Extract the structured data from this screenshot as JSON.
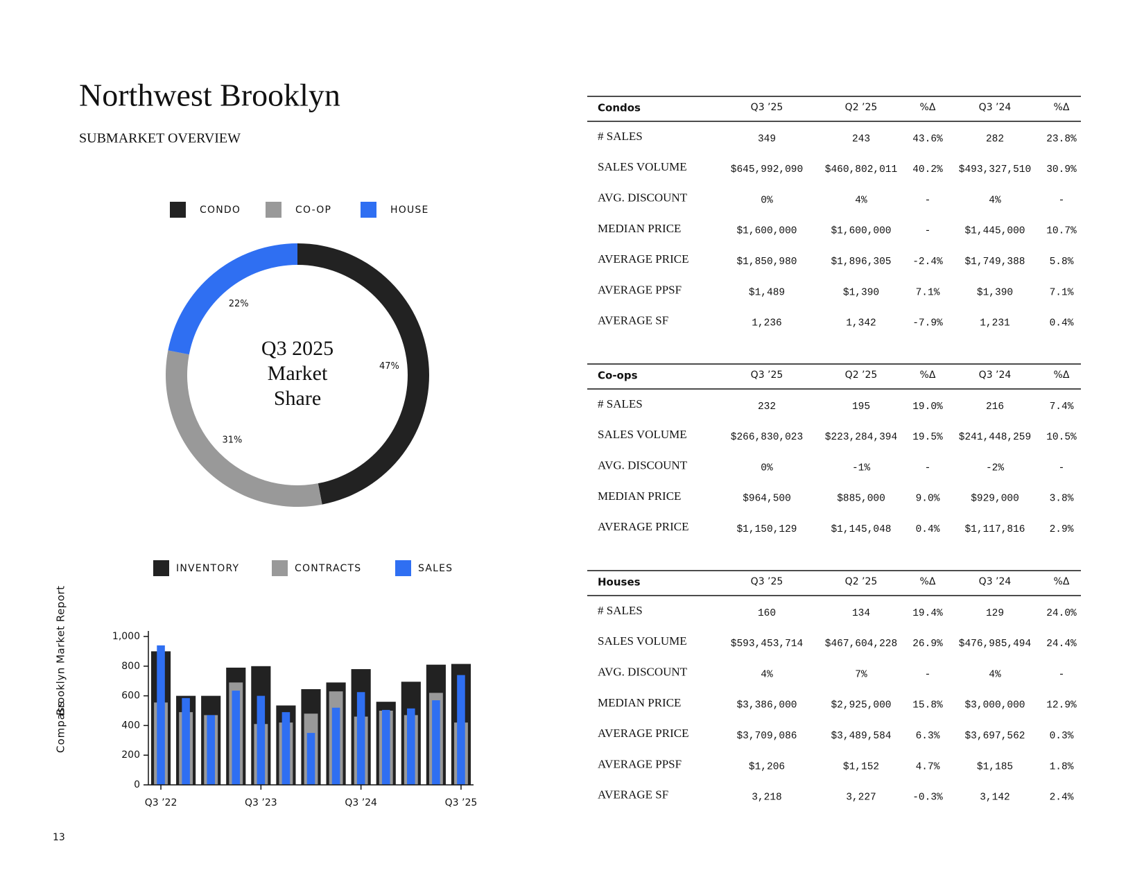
{
  "header": {
    "title": "Northwest Brooklyn",
    "subtitle": "SUBMARKET OVERVIEW"
  },
  "sidebar": {
    "brand": "Compass",
    "report": "Brooklyn Market Report"
  },
  "page_number": "13",
  "chart_data": [
    {
      "type": "donut",
      "center_label": [
        "Q3 2025",
        "Market",
        "Share"
      ],
      "categories": [
        "CONDO",
        "CO-OP",
        "HOUSE"
      ],
      "values": [
        47,
        31,
        22
      ],
      "value_labels": [
        "47%",
        "31%",
        "22%"
      ],
      "colors": [
        "#222222",
        "#999999",
        "#2f6ff2"
      ]
    },
    {
      "type": "bar",
      "categories": [
        "Q3 ’22",
        null,
        null,
        null,
        "Q3 ’23",
        null,
        null,
        null,
        "Q3 ’24",
        null,
        null,
        null,
        "Q3 ’25"
      ],
      "series": [
        {
          "name": "INVENTORY",
          "color": "#222222",
          "values": [
            900,
            600,
            600,
            790,
            800,
            535,
            645,
            690,
            780,
            560,
            695,
            810,
            815
          ]
        },
        {
          "name": "CONTRACTS",
          "color": "#999999",
          "values": [
            555,
            490,
            470,
            690,
            410,
            420,
            480,
            630,
            460,
            500,
            470,
            620,
            420
          ]
        },
        {
          "name": "SALES",
          "color": "#2f6ff2",
          "values": [
            940,
            585,
            470,
            635,
            600,
            490,
            350,
            520,
            625,
            505,
            515,
            570,
            740
          ]
        }
      ],
      "ylim": [
        0,
        1000
      ],
      "yticks": [
        0,
        200,
        400,
        600,
        800,
        {
          "value": 1000,
          "label": "1,000"
        }
      ]
    }
  ],
  "tables": [
    {
      "name": "Condos",
      "columns": [
        "Q3 ’25",
        "Q2 ’25",
        "%Δ",
        "Q3 ’24",
        "%Δ"
      ],
      "rows": [
        [
          "# SALES",
          "349",
          "243",
          "43.6%",
          "282",
          "23.8%"
        ],
        [
          "SALES VOLUME",
          "$645,992,090",
          "$460,802,011",
          "40.2%",
          "$493,327,510",
          "30.9%"
        ],
        [
          "AVG. DISCOUNT",
          "0%",
          "4%",
          "-",
          "4%",
          "-"
        ],
        [
          "MEDIAN PRICE",
          "$1,600,000",
          "$1,600,000",
          "-",
          "$1,445,000",
          "10.7%"
        ],
        [
          "AVERAGE PRICE",
          "$1,850,980",
          "$1,896,305",
          "-2.4%",
          "$1,749,388",
          "5.8%"
        ],
        [
          "AVERAGE PPSF",
          "$1,489",
          "$1,390",
          "7.1%",
          "$1,390",
          "7.1%"
        ],
        [
          "AVERAGE SF",
          "1,236",
          "1,342",
          "-7.9%",
          "1,231",
          "0.4%"
        ]
      ]
    },
    {
      "name": "Co-ops",
      "columns": [
        "Q3 ’25",
        "Q2 ’25",
        "%Δ",
        "Q3 ’24",
        "%Δ"
      ],
      "rows": [
        [
          "# SALES",
          "232",
          "195",
          "19.0%",
          "216",
          "7.4%"
        ],
        [
          "SALES VOLUME",
          "$266,830,023",
          "$223,284,394",
          "19.5%",
          "$241,448,259",
          "10.5%"
        ],
        [
          "AVG. DISCOUNT",
          "0%",
          "-1%",
          "-",
          "-2%",
          "-"
        ],
        [
          "MEDIAN PRICE",
          "$964,500",
          "$885,000",
          "9.0%",
          "$929,000",
          "3.8%"
        ],
        [
          "AVERAGE PRICE",
          "$1,150,129",
          "$1,145,048",
          "0.4%",
          "$1,117,816",
          "2.9%"
        ]
      ]
    },
    {
      "name": "Houses",
      "columns": [
        "Q3 ’25",
        "Q2 ’25",
        "%Δ",
        "Q3 ’24",
        "%Δ"
      ],
      "rows": [
        [
          "# SALES",
          "160",
          "134",
          "19.4%",
          "129",
          "24.0%"
        ],
        [
          "SALES VOLUME",
          "$593,453,714",
          "$467,604,228",
          "26.9%",
          "$476,985,494",
          "24.4%"
        ],
        [
          "AVG. DISCOUNT",
          "4%",
          "7%",
          "-",
          "4%",
          "-"
        ],
        [
          "MEDIAN PRICE",
          "$3,386,000",
          "$2,925,000",
          "15.8%",
          "$3,000,000",
          "12.9%"
        ],
        [
          "AVERAGE PRICE",
          "$3,709,086",
          "$3,489,584",
          "6.3%",
          "$3,697,562",
          "0.3%"
        ],
        [
          "AVERAGE PPSF",
          "$1,206",
          "$1,152",
          "4.7%",
          "$1,185",
          "1.8%"
        ],
        [
          "AVERAGE SF",
          "3,218",
          "3,227",
          "-0.3%",
          "3,142",
          "2.4%"
        ]
      ]
    }
  ]
}
